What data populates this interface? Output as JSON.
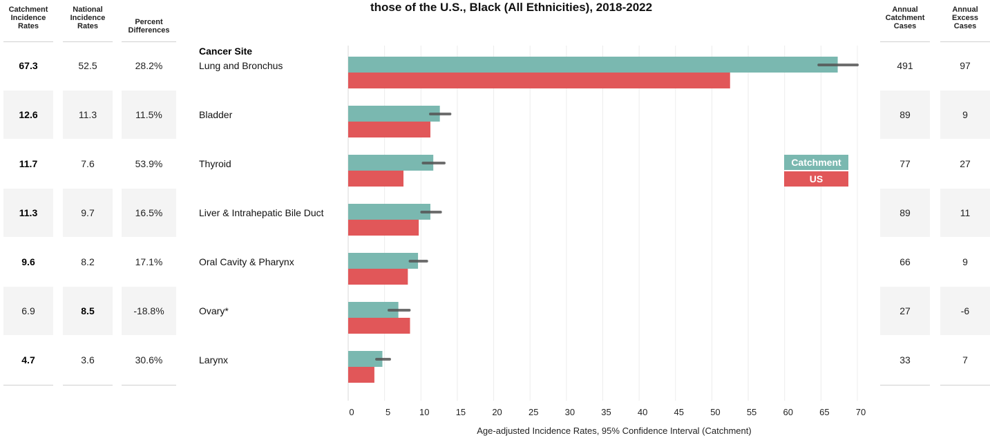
{
  "title": "those of the U.S., Black (All Ethnicities), 2018-2022",
  "headers": {
    "catchment_rates": [
      "Catchment",
      "Incidence",
      "Rates"
    ],
    "national_rates": [
      "National",
      "Incidence",
      "Rates"
    ],
    "percent_diff": [
      "Percent",
      "Differences"
    ],
    "annual_cases": [
      "Annual",
      "Catchment",
      "Cases"
    ],
    "excess_cases": [
      "Annual",
      "Excess",
      "Cases"
    ],
    "cancer_site": "Cancer Site"
  },
  "rows": [
    {
      "site": "Lung and Bronchus",
      "catchment": "67.3",
      "national": "52.5",
      "pct": "28.2%",
      "cases": "491",
      "excess": "97",
      "bold": "catchment"
    },
    {
      "site": "Bladder",
      "catchment": "12.6",
      "national": "11.3",
      "pct": "11.5%",
      "cases": "89",
      "excess": "9",
      "bold": "catchment"
    },
    {
      "site": "Thyroid",
      "catchment": "11.7",
      "national": "7.6",
      "pct": "53.9%",
      "cases": "77",
      "excess": "27",
      "bold": "catchment"
    },
    {
      "site": "Liver & Intrahepatic Bile Duct",
      "catchment": "11.3",
      "national": "9.7",
      "pct": "16.5%",
      "cases": "89",
      "excess": "11",
      "bold": "catchment"
    },
    {
      "site": "Oral Cavity & Pharynx",
      "catchment": "9.6",
      "national": "8.2",
      "pct": "17.1%",
      "cases": "66",
      "excess": "9",
      "bold": "catchment"
    },
    {
      "site": "Ovary*",
      "catchment": "6.9",
      "national": "8.5",
      "pct": "-18.8%",
      "cases": "27",
      "excess": "-6",
      "bold": "national"
    },
    {
      "site": "Larynx",
      "catchment": "4.7",
      "national": "3.6",
      "pct": "30.6%",
      "cases": "33",
      "excess": "7",
      "bold": "catchment"
    }
  ],
  "legend": {
    "catchment": "Catchment",
    "us": "US"
  },
  "colors": {
    "catchment": "#7ab8b0",
    "us": "#e15759",
    "ci": "#555555",
    "grid": "#ececec"
  },
  "chart_data": {
    "type": "bar",
    "orientation": "horizontal",
    "title": "those of the U.S., Black (All Ethnicities), 2018-2022",
    "xlabel": "Age-adjusted Incidence Rates, 95% Confidence Interval (Catchment)",
    "ylabel": "Cancer Site",
    "xlim": [
      0,
      70
    ],
    "xticks": [
      0,
      5,
      10,
      15,
      20,
      25,
      30,
      35,
      40,
      45,
      50,
      55,
      60,
      65,
      70
    ],
    "categories": [
      "Lung and Bronchus",
      "Bladder",
      "Thyroid",
      "Liver & Intrahepatic Bile Duct",
      "Oral Cavity & Pharynx",
      "Ovary*",
      "Larynx"
    ],
    "series": [
      {
        "name": "Catchment",
        "values": [
          67.3,
          12.6,
          11.7,
          11.3,
          9.6,
          6.9,
          4.7
        ],
        "ci_low": [
          64.7,
          11.3,
          10.3,
          10.1,
          8.5,
          5.6,
          3.9
        ],
        "ci_high": [
          70.0,
          14.0,
          13.2,
          12.7,
          10.8,
          8.4,
          5.7
        ]
      },
      {
        "name": "US",
        "values": [
          52.5,
          11.3,
          7.6,
          9.7,
          8.2,
          8.5,
          3.6
        ]
      }
    ],
    "grid": true,
    "legend": "right"
  }
}
